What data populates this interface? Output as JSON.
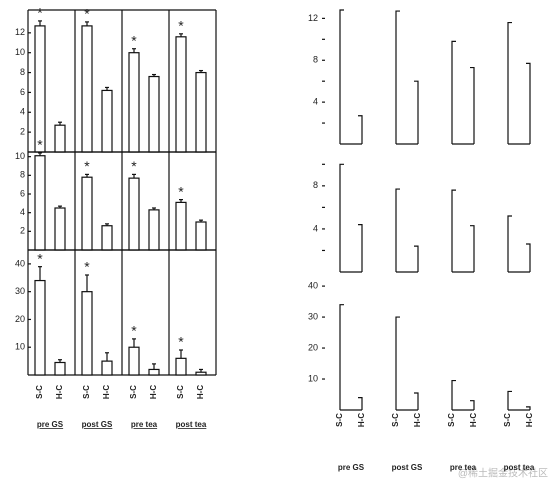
{
  "chart_data": [
    {
      "type": "bar",
      "style": "filled",
      "categories": [
        "pre GS",
        "post GS",
        "pre tea",
        "post tea"
      ],
      "series_names": [
        "S-C",
        "H-C"
      ],
      "rows": [
        {
          "ylim": [
            0,
            14.3
          ],
          "yticks": [
            2,
            4,
            6,
            8,
            10,
            12
          ],
          "series": [
            {
              "values": [
                12.7,
                12.7,
                10.0,
                11.6
              ],
              "errors": [
                0.5,
                0.4,
                0.4,
                0.3
              ],
              "annotation": "*"
            },
            {
              "values": [
                2.7,
                6.2,
                7.6,
                8.0
              ],
              "errors": [
                0.3,
                0.3,
                0.2,
                0.2
              ]
            }
          ]
        },
        {
          "ylim": [
            0,
            10.5
          ],
          "yticks": [
            2,
            4,
            6,
            8,
            10
          ],
          "series": [
            {
              "values": [
                10.1,
                7.8,
                7.7,
                5.1
              ],
              "errors": [
                0.3,
                0.3,
                0.4,
                0.3
              ],
              "annotation": "*"
            },
            {
              "values": [
                4.5,
                2.6,
                4.3,
                3.0
              ],
              "errors": [
                0.2,
                0.2,
                0.2,
                0.2
              ]
            }
          ]
        },
        {
          "ylim": [
            0,
            45
          ],
          "yticks": [
            10,
            20,
            30,
            40
          ],
          "series": [
            {
              "values": [
                34,
                30,
                10,
                6
              ],
              "errors": [
                5,
                6,
                3,
                3
              ],
              "annotation": "*"
            },
            {
              "values": [
                4.5,
                5,
                2,
                1
              ],
              "errors": [
                1,
                3,
                2,
                1
              ]
            }
          ]
        }
      ]
    },
    {
      "type": "bar",
      "style": "outline",
      "categories": [
        "pre GS",
        "post GS",
        "pre tea",
        "post tea"
      ],
      "series_names": [
        "S-C",
        "H-C"
      ],
      "rows": [
        {
          "ylim": [
            0,
            12.8
          ],
          "yticks": [
            4,
            8,
            12
          ],
          "yminor": [
            2,
            6,
            10
          ],
          "series": [
            {
              "values": [
                12.8,
                12.7,
                9.8,
                11.6
              ]
            },
            {
              "values": [
                2.7,
                6.0,
                7.3,
                7.7
              ]
            }
          ]
        },
        {
          "ylim": [
            0,
            10.4
          ],
          "yticks": [
            4,
            8
          ],
          "yminor": [
            2,
            6,
            10
          ],
          "series": [
            {
              "values": [
                10.0,
                7.7,
                7.6,
                5.2
              ]
            },
            {
              "values": [
                4.4,
                2.4,
                4.3,
                2.6
              ]
            }
          ]
        },
        {
          "ylim": [
            0,
            41
          ],
          "yticks": [
            10,
            20,
            30,
            40
          ],
          "series": [
            {
              "values": [
                34,
                30,
                9.5,
                6
              ]
            },
            {
              "values": [
                4,
                5.5,
                3,
                1
              ]
            }
          ]
        }
      ]
    }
  ],
  "watermark": "@稀土掘金技术社区"
}
